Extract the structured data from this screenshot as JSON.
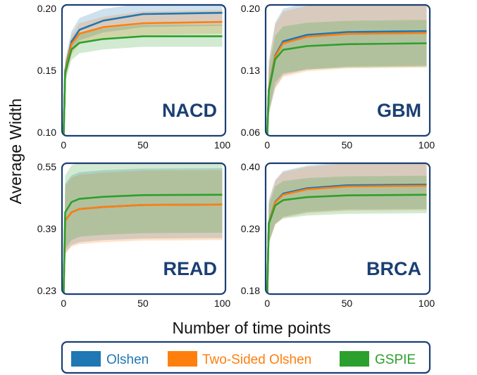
{
  "chart_data": {
    "type": "line",
    "xlabel": "Number of time points",
    "ylabel": "Average Width",
    "x_ticks": [
      0,
      50,
      100
    ],
    "x_range": [
      -1,
      102
    ],
    "x": [
      1,
      5,
      10,
      25,
      50,
      100
    ],
    "legend": {
      "placement": "bottom",
      "entries": [
        {
          "name": "Olshen",
          "color": "#1f77b4"
        },
        {
          "name": "Two-Sided Olshen",
          "color": "#ff7f0e"
        },
        {
          "name": "GSPIE",
          "color": "#2ca02c"
        }
      ]
    },
    "panels": [
      {
        "name": "NACD",
        "ylim": [
          0.1,
          0.2
        ],
        "yticks": [
          "0.20",
          "0.15",
          "0.10"
        ],
        "series": [
          {
            "name": "Olshen",
            "values": [
              0.15,
              0.172,
              0.181,
              0.188,
              0.193,
              0.194
            ],
            "lower": [
              0.143,
              0.164,
              0.173,
              0.179,
              0.183,
              0.184
            ],
            "upper": [
              0.158,
              0.18,
              0.19,
              0.197,
              0.201,
              0.203
            ]
          },
          {
            "name": "Two-Sided Olshen",
            "values": [
              0.149,
              0.17,
              0.178,
              0.183,
              0.186,
              0.187
            ],
            "lower": [
              0.142,
              0.162,
              0.17,
              0.175,
              0.177,
              0.178
            ],
            "upper": [
              0.156,
              0.177,
              0.186,
              0.191,
              0.195,
              0.196
            ]
          },
          {
            "name": "GSPIE",
            "values": [
              0.148,
              0.166,
              0.171,
              0.174,
              0.176,
              0.176
            ],
            "lower": [
              0.141,
              0.158,
              0.163,
              0.166,
              0.168,
              0.168
            ],
            "upper": [
              0.155,
              0.173,
              0.179,
              0.182,
              0.185,
              0.185
            ]
          }
        ]
      },
      {
        "name": "GBM",
        "ylim": [
          0.06,
          0.2
        ],
        "yticks": [
          "0.20",
          "0.13",
          "0.06"
        ],
        "series": [
          {
            "name": "Olshen",
            "values": [
              0.11,
              0.146,
              0.161,
              0.168,
              0.171,
              0.172
            ],
            "lower": [
              0.084,
              0.112,
              0.125,
              0.131,
              0.134,
              0.135
            ],
            "upper": [
              0.14,
              0.181,
              0.196,
              0.202,
              0.205,
              0.206
            ]
          },
          {
            "name": "Two-Sided Olshen",
            "values": [
              0.109,
              0.145,
              0.159,
              0.166,
              0.169,
              0.17
            ],
            "lower": [
              0.083,
              0.11,
              0.123,
              0.129,
              0.132,
              0.133
            ],
            "upper": [
              0.138,
              0.179,
              0.193,
              0.199,
              0.202,
              0.203
            ]
          },
          {
            "name": "GSPIE",
            "values": [
              0.108,
              0.142,
              0.152,
              0.156,
              0.158,
              0.159
            ],
            "lower": [
              0.085,
              0.117,
              0.127,
              0.131,
              0.133,
              0.134
            ],
            "upper": [
              0.132,
              0.167,
              0.177,
              0.181,
              0.183,
              0.184
            ]
          }
        ]
      },
      {
        "name": "READ",
        "ylim": [
          0.23,
          0.55
        ],
        "yticks": [
          "0.55",
          "0.39",
          "0.23"
        ],
        "series": [
          {
            "name": "Olshen",
            "values": [
              0.41,
              0.43,
              0.438,
              0.443,
              0.448,
              0.449
            ],
            "lower": [
              0.33,
              0.35,
              0.357,
              0.362,
              0.366,
              0.367
            ],
            "upper": [
              0.5,
              0.52,
              0.528,
              0.533,
              0.537,
              0.538
            ]
          },
          {
            "name": "Two-Sided Olshen",
            "values": [
              0.41,
              0.43,
              0.438,
              0.443,
              0.448,
              0.449
            ],
            "lower": [
              0.328,
              0.346,
              0.352,
              0.357,
              0.361,
              0.362
            ],
            "upper": [
              0.495,
              0.515,
              0.522,
              0.527,
              0.532,
              0.533
            ]
          },
          {
            "name": "GSPIE",
            "values": [
              0.43,
              0.455,
              0.463,
              0.468,
              0.472,
              0.473
            ],
            "lower": [
              0.34,
              0.362,
              0.37,
              0.375,
              0.379,
              0.38
            ],
            "upper": [
              0.52,
              0.545,
              0.552,
              0.556,
              0.56,
              0.561
            ]
          }
        ]
      },
      {
        "name": "BRCA",
        "ylim": [
          0.18,
          0.4
        ],
        "yticks": [
          "0.40",
          "0.29",
          "0.18"
        ],
        "series": [
          {
            "name": "Olshen",
            "values": [
              0.3,
              0.335,
              0.349,
              0.358,
              0.363,
              0.364
            ],
            "lower": [
              0.265,
              0.298,
              0.31,
              0.318,
              0.322,
              0.323
            ],
            "upper": [
              0.338,
              0.372,
              0.387,
              0.396,
              0.402,
              0.403
            ]
          },
          {
            "name": "Two-Sided Olshen",
            "values": [
              0.299,
              0.334,
              0.347,
              0.356,
              0.361,
              0.362
            ],
            "lower": [
              0.264,
              0.296,
              0.308,
              0.316,
              0.32,
              0.321
            ],
            "upper": [
              0.336,
              0.37,
              0.385,
              0.394,
              0.4,
              0.401
            ]
          },
          {
            "name": "GSPIE",
            "values": [
              0.298,
              0.329,
              0.338,
              0.343,
              0.346,
              0.347
            ],
            "lower": [
              0.268,
              0.298,
              0.307,
              0.312,
              0.315,
              0.316
            ],
            "upper": [
              0.33,
              0.361,
              0.37,
              0.375,
              0.378,
              0.379
            ]
          }
        ]
      }
    ]
  }
}
